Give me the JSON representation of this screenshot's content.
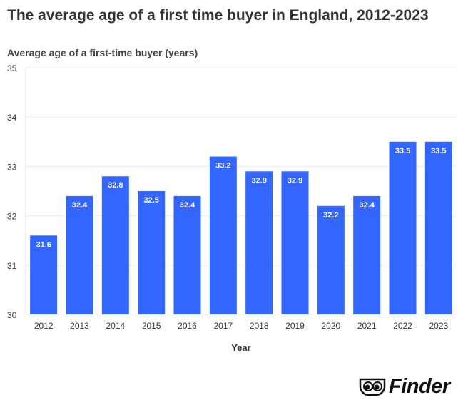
{
  "chart_data": {
    "type": "bar",
    "title": "The average age of a first time buyer in England, 2012-2023",
    "ylabel": "Average age of a first-time buyer (years)",
    "xlabel": "Year",
    "categories": [
      "2012",
      "2013",
      "2014",
      "2015",
      "2016",
      "2017",
      "2018",
      "2019",
      "2020",
      "2021",
      "2022",
      "2023"
    ],
    "values": [
      31.6,
      32.4,
      32.8,
      32.5,
      32.4,
      33.2,
      32.9,
      32.9,
      32.2,
      32.4,
      33.5,
      33.5
    ],
    "ylim": [
      30,
      35
    ],
    "yticks": [
      30,
      31,
      32,
      33,
      34,
      35
    ],
    "grid": true,
    "bar_color": "#3366ff"
  },
  "logo": {
    "text": "Finder"
  }
}
